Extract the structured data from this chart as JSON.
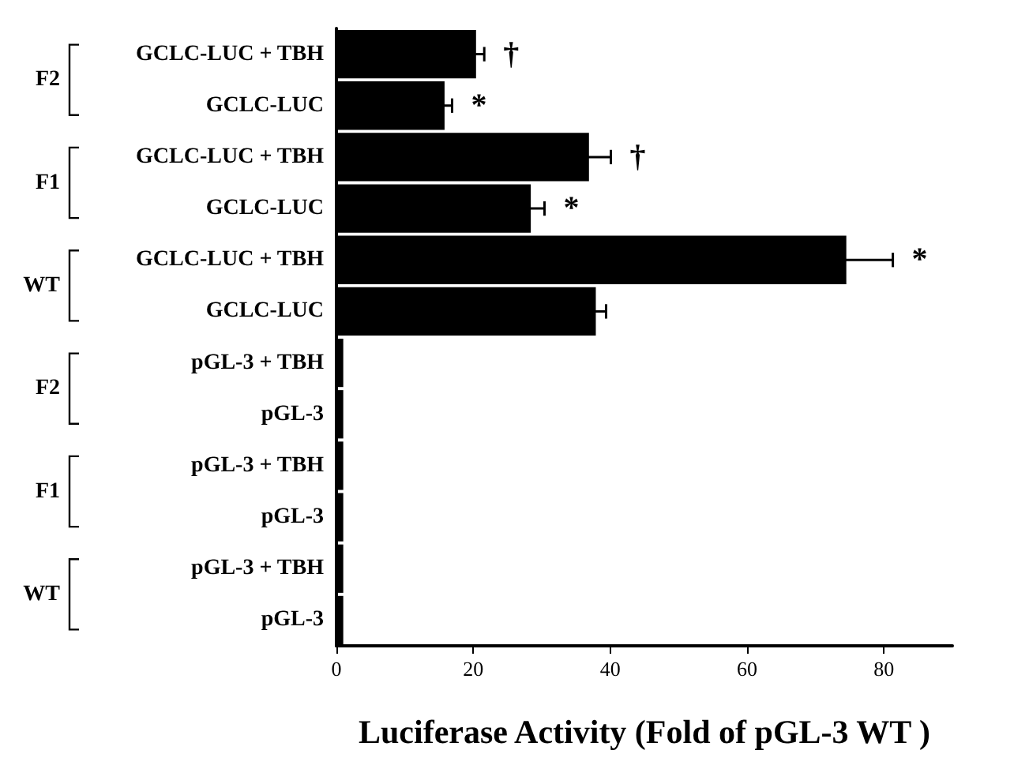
{
  "chart_data": {
    "type": "bar",
    "orientation": "horizontal",
    "xlabel": "Luciferase Activity (Fold of pGL-3 WT )",
    "categories": [
      "GCLC-LUC + TBH",
      "GCLC-LUC",
      "GCLC-LUC + TBH",
      "GCLC-LUC",
      "GCLC-LUC + TBH",
      "GCLC-LUC",
      "pGL-3 + TBH",
      "pGL-3",
      "pGL-3 + TBH",
      "pGL-3",
      "pGL-3 + TBH",
      "pGL-3"
    ],
    "values": [
      20.4,
      15.8,
      36.9,
      28.4,
      74.5,
      37.9,
      1,
      1,
      1,
      1,
      1,
      1
    ],
    "errors": [
      1.2,
      1.1,
      3.2,
      2,
      6.8,
      1.5,
      null,
      null,
      null,
      null,
      null,
      null
    ],
    "value_labels": [
      "†",
      "*",
      "†",
      "*",
      "*",
      null,
      null,
      null,
      null,
      null,
      null,
      null
    ],
    "color": "#000000",
    "xlim": [
      0,
      90
    ],
    "xticks": [
      0,
      20,
      40,
      60,
      80
    ],
    "annotations": [
      "F2",
      "F1",
      "WT",
      "F2",
      "F1",
      "WT"
    ],
    "grid": false
  }
}
